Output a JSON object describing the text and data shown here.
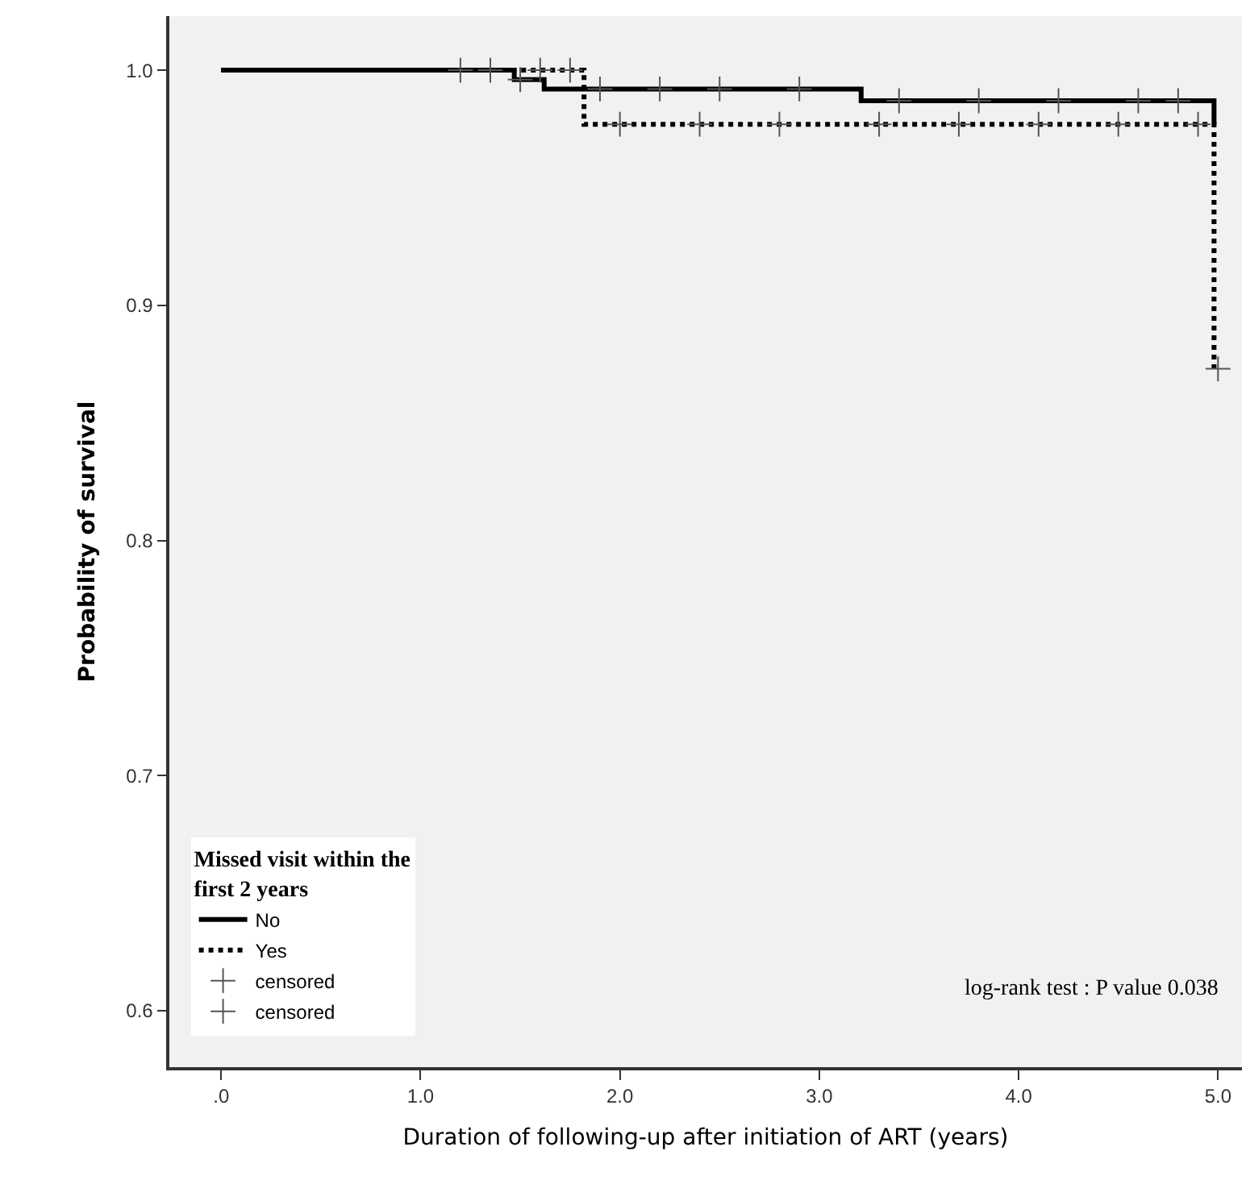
{
  "chart_data": {
    "type": "step",
    "xlabel": "Duration of following-up after initiation of ART (years)",
    "ylabel": "Probability of survival",
    "legend_title": "Missed visit within the first 2 years",
    "series": [
      {
        "name": "No",
        "color": "#000000",
        "line_style": "solid",
        "x": [
          0,
          1.47,
          1.62,
          3.21,
          4.98
        ],
        "values": [
          1,
          0.996,
          0.992,
          0.987,
          0.977
        ]
      },
      {
        "name": "Yes",
        "color": "#000000",
        "line_style": "dotted",
        "x": [
          0,
          1.82,
          4.98
        ],
        "values": [
          1,
          0.977,
          0.873
        ]
      },
      {
        "name": "censored",
        "type": "scatter",
        "marker": "cross",
        "color": "#555555",
        "x": [
          1.2,
          1.35,
          1.5,
          1.9,
          2.2,
          2.5,
          2.9,
          3.4,
          3.8,
          4.2,
          4.6,
          4.8
        ],
        "values": [
          1,
          1,
          0.996,
          0.992,
          0.992,
          0.992,
          0.992,
          0.987,
          0.987,
          0.987,
          0.987,
          0.987
        ]
      },
      {
        "name": "censored",
        "type": "scatter",
        "marker": "cross",
        "color": "#555555",
        "x": [
          1.6,
          1.75,
          2.0,
          2.4,
          2.8,
          3.3,
          3.7,
          4.1,
          4.5,
          4.9,
          5.0
        ],
        "values": [
          1,
          1,
          0.977,
          0.977,
          0.977,
          0.977,
          0.977,
          0.977,
          0.977,
          0.977,
          0.873
        ]
      }
    ],
    "xlim": [
      -0.26,
      5.12
    ],
    "xticks": [
      {
        "value": 0,
        "label": ".0"
      },
      {
        "value": 1,
        "label": "1.0"
      },
      {
        "value": 2,
        "label": "2.0"
      },
      {
        "value": 3,
        "label": "3.0"
      },
      {
        "value": 4,
        "label": "4.0"
      },
      {
        "value": 5,
        "label": "5.0"
      }
    ],
    "ylim": [
      0.576,
      1.023
    ],
    "yticks": [
      {
        "value": 0.6,
        "label": "0.6"
      },
      {
        "value": 0.7,
        "label": "0.7"
      },
      {
        "value": 0.8,
        "label": "0.8"
      },
      {
        "value": 0.9,
        "label": "0.9"
      },
      {
        "value": 1,
        "label": "1.0"
      }
    ],
    "annotations": [
      "log-rank test : P value 0.038"
    ],
    "grid": false,
    "legend": "bottom left"
  }
}
